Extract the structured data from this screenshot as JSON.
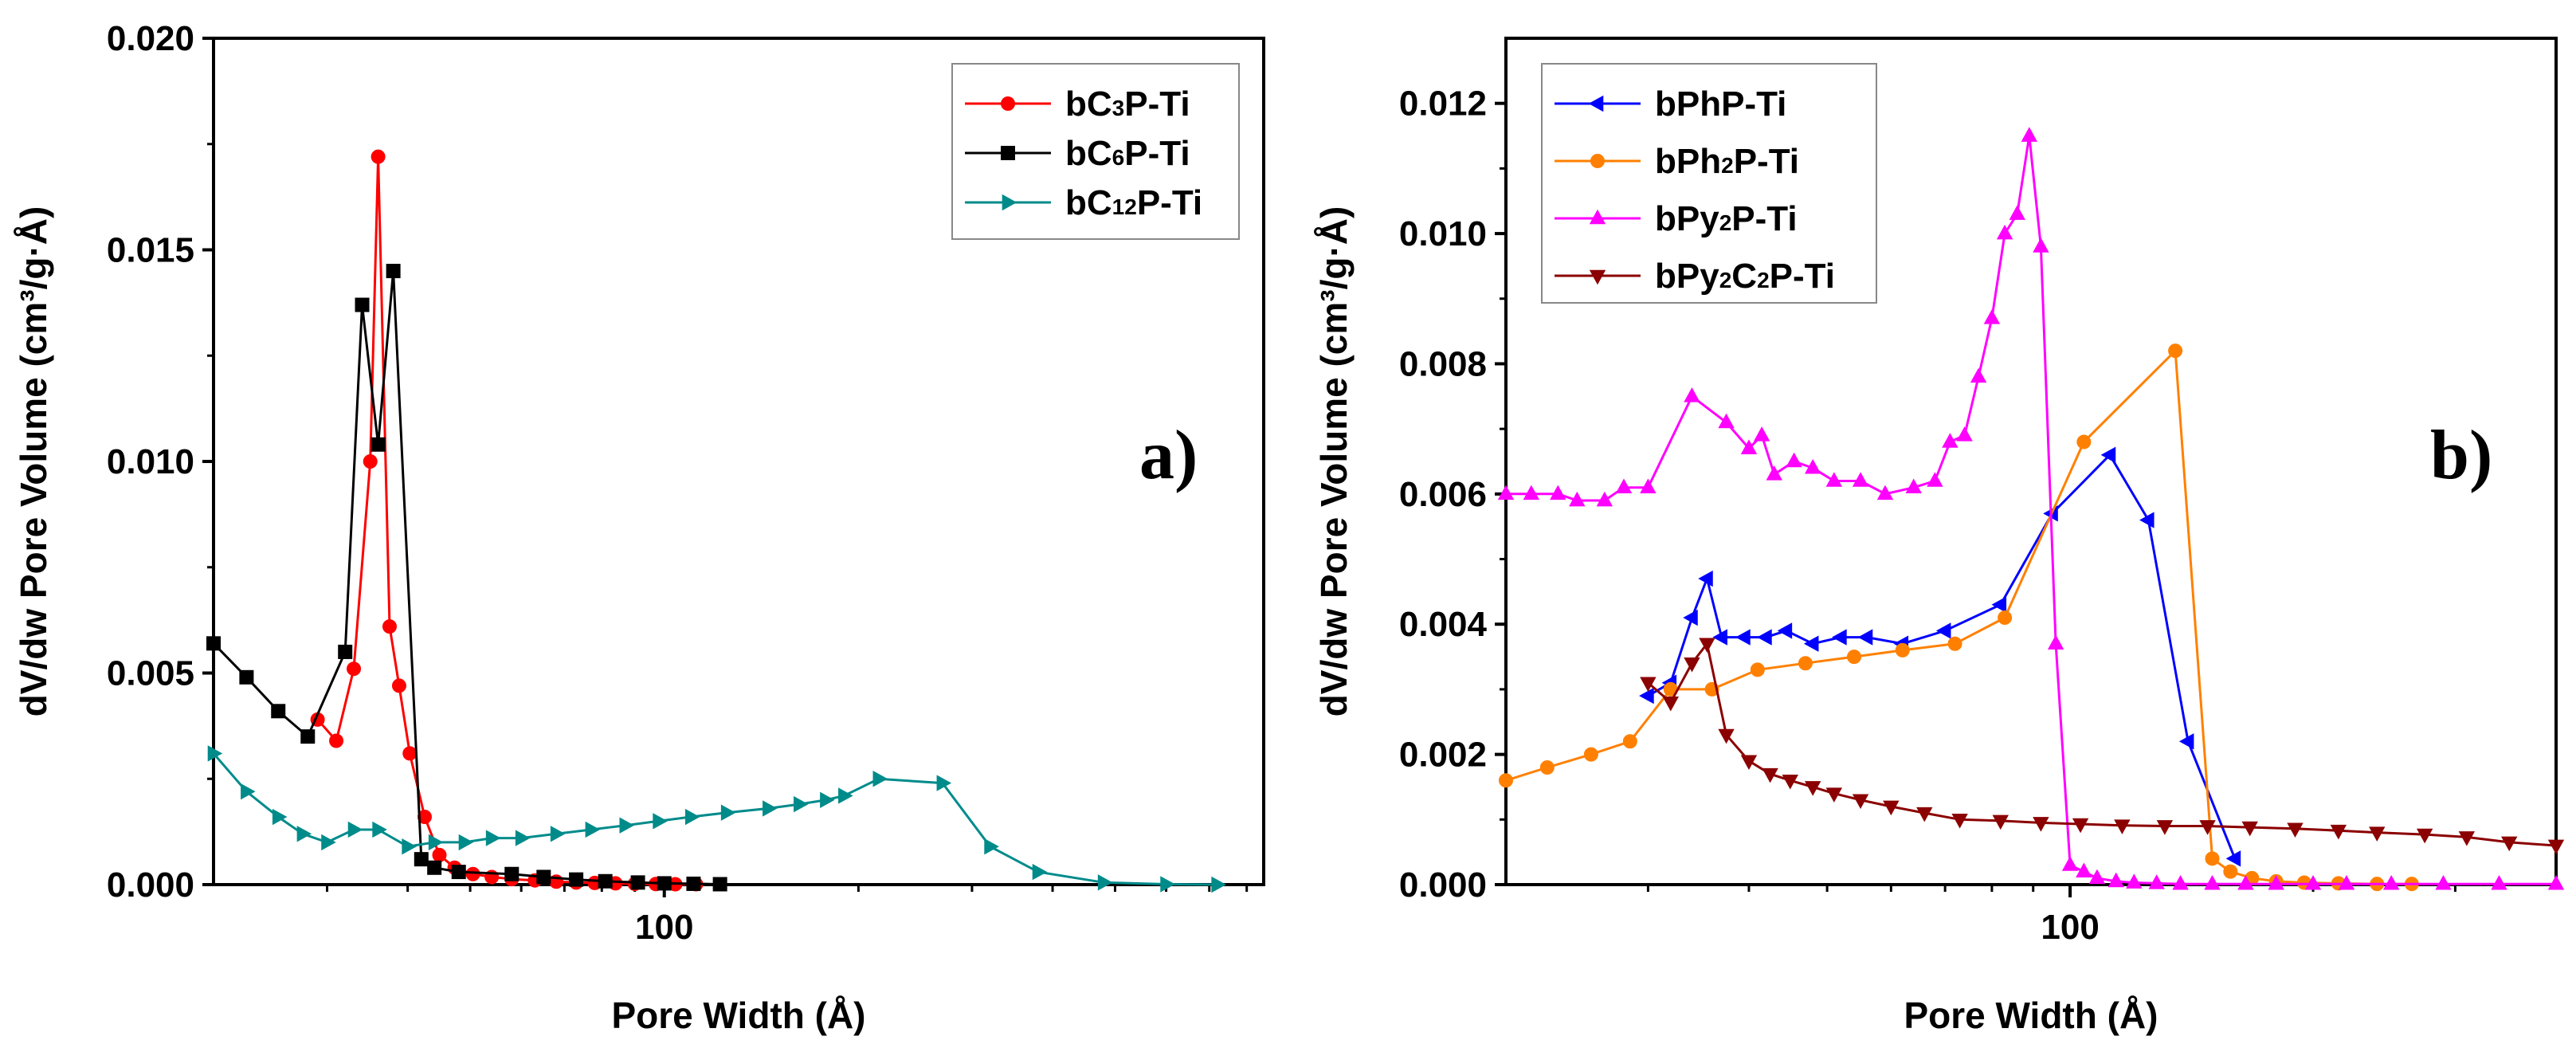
{
  "chart_data": [
    {
      "type": "line",
      "panel_label": "a)",
      "xlabel": "Pore Width (Å)",
      "ylabel": "dV/dw Pore Volume (cm³/g·Å)",
      "xscale": "log",
      "xlim": [
        20,
        850
      ],
      "ylim": [
        0,
        0.02
      ],
      "yticks": [
        "0.000",
        "0.005",
        "0.010",
        "0.015",
        "0.020"
      ],
      "ytick_values": [
        0,
        0.005,
        0.01,
        0.015,
        0.02
      ],
      "xticks": [
        "100"
      ],
      "xtick_values": [
        100
      ],
      "legend_position": "top-right",
      "series": [
        {
          "name": "bC₃P-Ti",
          "name_base": "bC",
          "name_sub": "3",
          "name_tail": "P-Ti",
          "color": "#ff0000",
          "marker": "circle",
          "x": [
            29,
            31,
            33,
            35,
            36,
            37.5,
            38.8,
            40.3,
            42.5,
            44.8,
            47.3,
            50.5,
            54,
            58,
            63,
            68,
            73,
            78,
            84,
            90,
            97,
            104,
            112
          ],
          "y": [
            0.0039,
            0.0034,
            0.0051,
            0.01,
            0.0172,
            0.0061,
            0.0047,
            0.0031,
            0.0016,
            0.0007,
            0.0004,
            0.00025,
            0.00018,
            0.00013,
            0.0001,
            7e-05,
            5e-05,
            4e-05,
            3e-05,
            2e-05,
            1.5e-05,
            1e-05,
            1e-05
          ]
        },
        {
          "name": "bC₆P-Ti",
          "name_base": "bC",
          "name_sub": "6",
          "name_tail": "P-Ti",
          "color": "#000000",
          "marker": "square",
          "x": [
            20,
            22.5,
            25.2,
            28,
            32,
            34,
            36,
            38,
            42,
            44,
            48,
            58,
            65,
            73,
            81,
            91,
            100,
            111,
            122
          ],
          "y": [
            0.0057,
            0.0049,
            0.0041,
            0.0035,
            0.0055,
            0.0137,
            0.0104,
            0.0145,
            0.0006,
            0.0004,
            0.0003,
            0.00025,
            0.00018,
            0.00012,
            8e-05,
            5e-05,
            3e-05,
            2e-05,
            1e-05
          ]
        },
        {
          "name": "bC₁₂P-Ti",
          "name_base": "bC",
          "name_sub": "12",
          "name_tail": "P-Ti",
          "color": "#008b8b",
          "marker": "triangle-right",
          "x": [
            20,
            22.5,
            25.2,
            27.5,
            30,
            33,
            36,
            40,
            44,
            49,
            54,
            60,
            68,
            77,
            87,
            98,
            110,
            125,
            145,
            162,
            178,
            190,
            215,
            270,
            320,
            380,
            480,
            600,
            720
          ],
          "y": [
            0.0031,
            0.0022,
            0.0016,
            0.0012,
            0.001,
            0.0013,
            0.0013,
            0.0009,
            0.001,
            0.001,
            0.0011,
            0.0011,
            0.0012,
            0.0013,
            0.0014,
            0.0015,
            0.0016,
            0.0017,
            0.0018,
            0.0019,
            0.002,
            0.0021,
            0.0025,
            0.0024,
            0.0009,
            0.0003,
            5e-05,
            1e-05,
            0.0
          ]
        }
      ]
    },
    {
      "type": "line",
      "panel_label": "b)",
      "xlabel": "Pore Width (Å)",
      "ylabel": "dV/dw Pore Volume (cm³/g·Å)",
      "xscale": "log",
      "xlim": [
        20,
        400
      ],
      "ylim": [
        0,
        0.013
      ],
      "yticks": [
        "0.000",
        "0.002",
        "0.004",
        "0.006",
        "0.008",
        "0.010",
        "0.012"
      ],
      "ytick_values": [
        0,
        0.002,
        0.004,
        0.006,
        0.008,
        0.01,
        0.012
      ],
      "xticks": [
        "100"
      ],
      "xtick_values": [
        100
      ],
      "legend_position": "top-left",
      "series": [
        {
          "name": "bPhP-Ti",
          "name_base": "bPhP-Ti",
          "name_sub": "",
          "name_tail": "",
          "color": "#0000ff",
          "marker": "triangle-left",
          "x": [
            30,
            32,
            34,
            35.5,
            37,
            39.5,
            42,
            44.5,
            48,
            52,
            56,
            62,
            70,
            82,
            95,
            112,
            125,
            140,
            160
          ],
          "y": [
            0.0029,
            0.0031,
            0.0041,
            0.0047,
            0.0038,
            0.0038,
            0.0038,
            0.0039,
            0.0037,
            0.0038,
            0.0038,
            0.0037,
            0.0039,
            0.0043,
            0.0057,
            0.0066,
            0.0056,
            0.0022,
            0.0004
          ]
        },
        {
          "name": "bPh₂P-Ti",
          "name_base": "bPh",
          "name_sub": "2",
          "name_tail": "P-Ti",
          "color": "#ff8000",
          "marker": "circle",
          "x": [
            20,
            22.5,
            25.5,
            28.5,
            32,
            36,
            41,
            47,
            54,
            62,
            72,
            83,
            104,
            135,
            150,
            158,
            168,
            180,
            195,
            215,
            240,
            265
          ],
          "y": [
            0.0016,
            0.0018,
            0.002,
            0.0022,
            0.003,
            0.003,
            0.0033,
            0.0034,
            0.0035,
            0.0036,
            0.0037,
            0.0041,
            0.0068,
            0.0082,
            0.0004,
            0.0002,
            0.0001,
            5e-05,
            3e-05,
            2e-05,
            1e-05,
            1e-05
          ]
        },
        {
          "name": "bPy₂P-Ti",
          "name_base": "bPy",
          "name_sub": "2",
          "name_tail": "P-Ti",
          "color": "#ff00ff",
          "marker": "triangle-up",
          "x": [
            20,
            21.5,
            23.2,
            24.5,
            26.5,
            28,
            30,
            34,
            37.5,
            40,
            41.5,
            43,
            45.5,
            48,
            51,
            55,
            59,
            64,
            68,
            71,
            74,
            77,
            80,
            83,
            86,
            89,
            92,
            96,
            100,
            104,
            108,
            114,
            120,
            128,
            137,
            150,
            165,
            180,
            200,
            220,
            250,
            290,
            340,
            400
          ],
          "y": [
            0.006,
            0.006,
            0.006,
            0.0059,
            0.0059,
            0.0061,
            0.0061,
            0.0075,
            0.0071,
            0.0067,
            0.0069,
            0.0063,
            0.0065,
            0.0064,
            0.0062,
            0.0062,
            0.006,
            0.0061,
            0.0062,
            0.0068,
            0.0069,
            0.0078,
            0.0087,
            0.01,
            0.0103,
            0.0115,
            0.0098,
            0.0037,
            0.0003,
            0.0002,
            0.0001,
            5e-05,
            3e-05,
            2e-05,
            1e-05,
            1e-05,
            1e-05,
            1e-05,
            1e-05,
            1e-05,
            1e-05,
            1e-05,
            1e-05,
            1e-05
          ]
        },
        {
          "name": "bPy₂C₂P-Ti",
          "name_base": "bPy",
          "name_sub": "2",
          "name_tail": "C",
          "name_sub2": "2",
          "name_tail2": "P-Ti",
          "color": "#8b0000",
          "marker": "triangle-down",
          "x": [
            30,
            32,
            34,
            35.5,
            37.5,
            40,
            42.5,
            45,
            48,
            51,
            55,
            60,
            66,
            73,
            82,
            92,
            103,
            116,
            131,
            148,
            167,
            190,
            215,
            240,
            275,
            310,
            350,
            400
          ],
          "y": [
            0.0031,
            0.0028,
            0.0034,
            0.0037,
            0.0023,
            0.0019,
            0.0017,
            0.0016,
            0.0015,
            0.0014,
            0.0013,
            0.0012,
            0.0011,
            0.001,
            0.00098,
            0.00095,
            0.00093,
            0.00091,
            0.0009,
            0.0009,
            0.00088,
            0.00086,
            0.00083,
            0.0008,
            0.00077,
            0.00073,
            0.00065,
            0.0006
          ]
        }
      ]
    }
  ]
}
